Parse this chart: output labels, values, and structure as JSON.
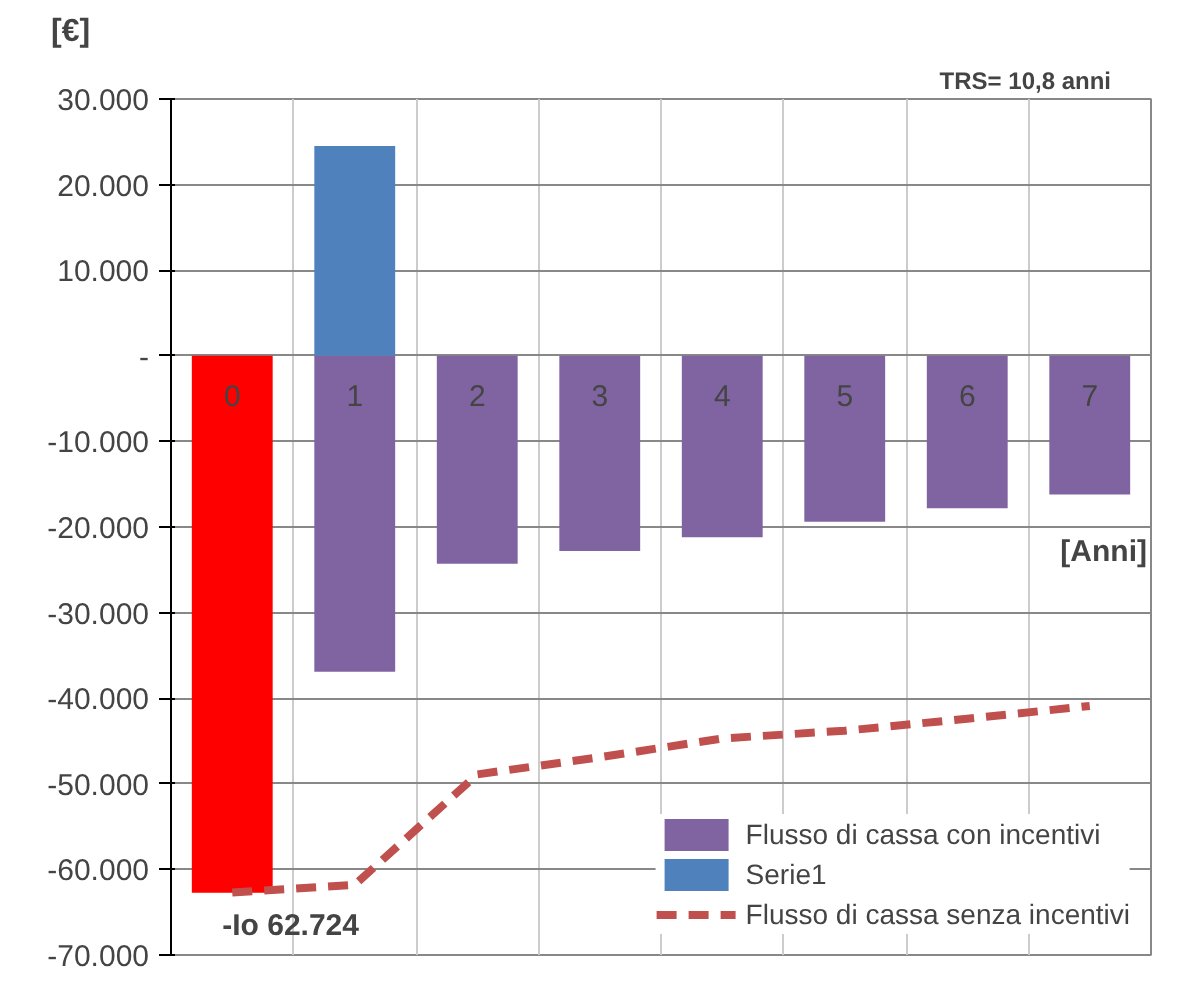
{
  "chart_data": {
    "type": "bar",
    "stacked": true,
    "categories": [
      "0",
      "1",
      "2",
      "3",
      "4",
      "5",
      "6",
      "7"
    ],
    "series": [
      {
        "name": "Flusso di cassa con incentivi",
        "color": "#8064a2",
        "colors": [
          "#ff0000",
          "#8064a2",
          "#8064a2",
          "#8064a2",
          "#8064a2",
          "#8064a2",
          "#8064a2",
          "#8064a2"
        ],
        "values": [
          -62724,
          -36900,
          -24300,
          -22800,
          -21200,
          -19400,
          -17800,
          -16200
        ]
      },
      {
        "name": "Serie1",
        "color": "#4f81bd",
        "values": [
          null,
          24500,
          null,
          null,
          null,
          null,
          null,
          null
        ]
      },
      {
        "name": "Flusso di cassa senza incentivi",
        "type": "line",
        "line_style": "dashed",
        "color": "#c0504d",
        "values": [
          -62700,
          -61800,
          -48900,
          -46900,
          -44700,
          -43800,
          -42400,
          -40900
        ]
      }
    ],
    "ylim": [
      -70000,
      30000
    ],
    "yticks": [
      {
        "value": -70000,
        "label": "-70.000"
      },
      {
        "value": -60000,
        "label": "-60.000"
      },
      {
        "value": -50000,
        "label": "-50.000"
      },
      {
        "value": -40000,
        "label": "-40.000"
      },
      {
        "value": -30000,
        "label": "-30.000"
      },
      {
        "value": -20000,
        "label": "-20.000"
      },
      {
        "value": -10000,
        "label": "-10.000"
      },
      {
        "value": 0,
        "label": "-"
      },
      {
        "value": 10000,
        "label": "10.000"
      },
      {
        "value": 20000,
        "label": "20.000"
      },
      {
        "value": 30000,
        "label": "30.000"
      }
    ],
    "ylabel": "[€]",
    "xlabel": "[Anni]",
    "annotations": [
      "TRS= 10,8 anni",
      {
        "text": "-Io 62.724",
        "x": "0",
        "y": -62724
      }
    ],
    "grid": true,
    "legend": "bottom right"
  }
}
